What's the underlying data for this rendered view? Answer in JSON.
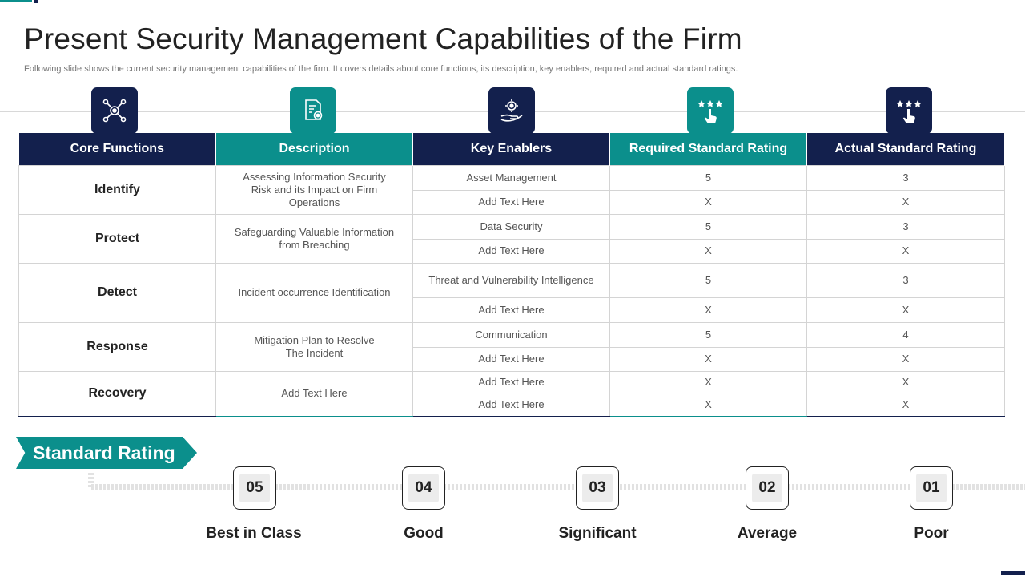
{
  "title": "Present Security Management Capabilities of the Firm",
  "subtitle": "Following slide shows the current security management capabilities of the firm. It covers details about core functions, its description, key enablers, required and actual standard ratings.",
  "colors": {
    "navy": "#13204d",
    "teal": "#0b8f8c"
  },
  "icons": [
    "network-gear-icon",
    "document-settings-icon",
    "hand-gear-icon",
    "stars-click-icon",
    "stars-click-icon"
  ],
  "table": {
    "headers": [
      "Core Functions",
      "Description",
      "Key Enablers",
      "Required Standard Rating",
      "Actual Standard Rating"
    ],
    "groups": [
      {
        "core": "Identify",
        "description": "Assessing Information  Security Risk and its Impact on Firm Operations",
        "rows": [
          {
            "enabler": "Asset Management",
            "required": "5",
            "actual": "3"
          },
          {
            "enabler": "Add Text Here",
            "required": "X",
            "actual": "X"
          }
        ]
      },
      {
        "core": "Protect",
        "description": "Safeguarding  Valuable Information from Breaching",
        "rows": [
          {
            "enabler": "Data Security",
            "required": "5",
            "actual": "3"
          },
          {
            "enabler": "Add Text Here",
            "required": "X",
            "actual": "X"
          }
        ]
      },
      {
        "core": "Detect",
        "description": "Incident occurrence Identification",
        "rows": [
          {
            "enabler": "Threat  and Vulnerability Intelligence",
            "required": "5",
            "actual": "3"
          },
          {
            "enabler": "Add Text Here",
            "required": "X",
            "actual": "X"
          }
        ]
      },
      {
        "core": "Response",
        "description": "Mitigation Plan to Resolve The Incident",
        "rows": [
          {
            "enabler": "Communication",
            "required": "5",
            "actual": "4"
          },
          {
            "enabler": "Add Text Here",
            "required": "X",
            "actual": "X"
          }
        ]
      },
      {
        "core": "Recovery",
        "description": "Add Text Here",
        "rows": [
          {
            "enabler": "Add Text Here",
            "required": "X",
            "actual": "X"
          },
          {
            "enabler": "Add Text Here",
            "required": "X",
            "actual": "X"
          }
        ]
      }
    ]
  },
  "standard_rating": {
    "heading": "Standard Rating",
    "levels": [
      {
        "number": "05",
        "label": "Best in Class"
      },
      {
        "number": "04",
        "label": "Good"
      },
      {
        "number": "03",
        "label": "Significant"
      },
      {
        "number": "02",
        "label": "Average"
      },
      {
        "number": "01",
        "label": "Poor"
      }
    ]
  }
}
